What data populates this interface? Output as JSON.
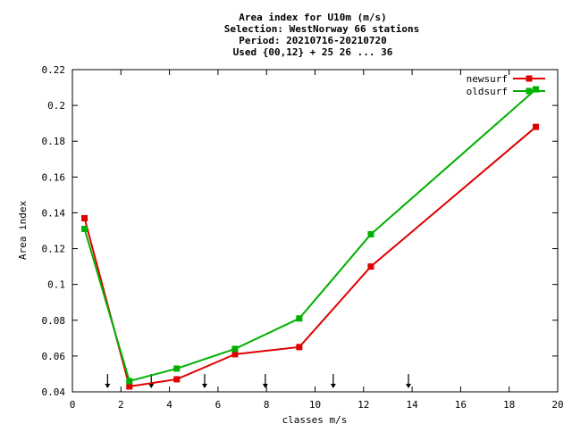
{
  "chart_data": {
    "type": "line",
    "title_lines": [
      "Area index  for U10m (m/s)",
      "Selection: WestNorway     66 stations",
      "Period: 20210716-20210720",
      "Used {00,12} + 25 26 ... 36"
    ],
    "xlabel": "classes m/s",
    "ylabel": "Area index",
    "xlim": [
      0,
      20
    ],
    "ylim": [
      0.04,
      0.22
    ],
    "xticks": [
      0,
      2,
      4,
      6,
      8,
      10,
      12,
      14,
      16,
      18,
      20
    ],
    "yticks": [
      0.04,
      0.06,
      0.08,
      0.1,
      0.12,
      0.14,
      0.16,
      0.18,
      0.2,
      0.22
    ],
    "xtick_labels": [
      "0",
      "2",
      "4",
      "6",
      "8",
      "10",
      "12",
      "14",
      "16",
      "18",
      "20"
    ],
    "ytick_labels": [
      "0.04",
      "0.06",
      "0.08",
      "0.1",
      "0.12",
      "0.14",
      "0.16",
      "0.18",
      "0.2",
      "0.22"
    ],
    "grid": false,
    "legend_position": "top-right",
    "class_boundary_arrows_x": [
      1.45,
      3.25,
      5.45,
      7.95,
      10.75,
      13.85
    ],
    "series": [
      {
        "name": "newsurf",
        "color": "#e00000",
        "x": [
          0.5,
          2.35,
          4.3,
          6.7,
          9.35,
          12.3,
          19.1
        ],
        "y": [
          0.137,
          0.043,
          0.047,
          0.061,
          0.065,
          0.11,
          0.188
        ]
      },
      {
        "name": "oldsurf",
        "color": "#00b000",
        "x": [
          0.5,
          2.35,
          4.3,
          6.7,
          9.35,
          12.3,
          19.1
        ],
        "y": [
          0.131,
          0.046,
          0.053,
          0.064,
          0.081,
          0.128,
          0.209
        ]
      }
    ]
  }
}
